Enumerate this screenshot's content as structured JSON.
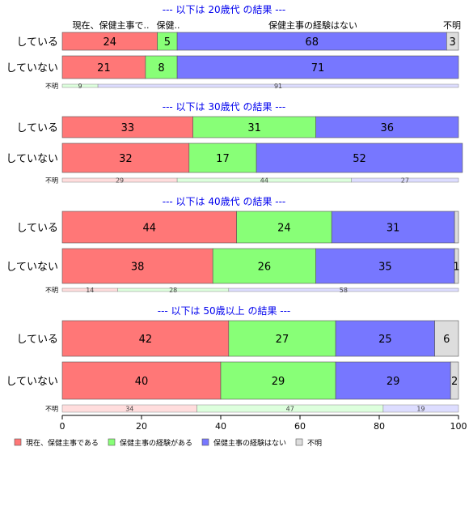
{
  "chart_data": {
    "type": "bar",
    "orientation": "horizontal",
    "stacked": true,
    "xlim": [
      0,
      100
    ],
    "x_ticks": [
      0,
      20,
      40,
      60,
      80,
      100
    ],
    "grid": false,
    "legend_position": "bottom-left",
    "categories_legend": [
      "現在、保健主事である",
      "保健主事の経験がある",
      "保健主事の経験はない",
      "不明"
    ],
    "colors": [
      "#ff7777",
      "#88ff77",
      "#7777ff",
      "#dddddd"
    ],
    "header_labels": [
      "現在、保健主事で..",
      "保健..",
      "保健主事の経験はない",
      "不明"
    ],
    "panels": [
      {
        "title": "--- 以下は 20歳代 の結果 ---",
        "rows": [
          {
            "label": "している",
            "values": [
              24,
              5,
              68,
              3
            ]
          },
          {
            "label": "していない",
            "values": [
              21,
              8,
              71,
              0
            ]
          }
        ],
        "unknown": {
          "label": "不明",
          "values": [
            0,
            9,
            91,
            0
          ],
          "labels": [
            "",
            "9",
            "91",
            ""
          ]
        }
      },
      {
        "title": "--- 以下は 30歳代 の結果 ---",
        "rows": [
          {
            "label": "している",
            "values": [
              33,
              31,
              36,
              0
            ]
          },
          {
            "label": "していない",
            "values": [
              32,
              17,
              52,
              0
            ]
          }
        ],
        "unknown": {
          "label": "不明",
          "values": [
            29,
            44,
            27,
            0
          ],
          "labels": [
            "29",
            "44",
            "27",
            ""
          ]
        }
      },
      {
        "title": "--- 以下は 40歳代 の結果 ---",
        "rows": [
          {
            "label": "している",
            "values": [
              44,
              24,
              31,
              1
            ]
          },
          {
            "label": "していない",
            "values": [
              38,
              26,
              35,
              1
            ]
          }
        ],
        "unknown": {
          "label": "不明",
          "values": [
            14,
            28,
            58,
            0
          ],
          "labels": [
            "14",
            "28",
            "58",
            ""
          ]
        }
      },
      {
        "title": "--- 以下は 50歳以上 の結果 ---",
        "rows": [
          {
            "label": "している",
            "values": [
              42,
              27,
              25,
              6
            ]
          },
          {
            "label": "していない",
            "values": [
              40,
              29,
              29,
              2
            ]
          }
        ],
        "unknown": {
          "label": "不明",
          "values": [
            34,
            47,
            19,
            0
          ],
          "labels": [
            "34",
            "47",
            "19",
            ""
          ]
        }
      }
    ],
    "row_labels_override": [
      [
        [
          "24",
          "5",
          "68",
          "3"
        ],
        [
          "21",
          "8",
          "71",
          ""
        ]
      ],
      [
        [
          "33",
          "31",
          "36",
          ""
        ],
        [
          "32",
          "17",
          "52",
          ""
        ]
      ],
      [
        [
          "44",
          "24",
          "31",
          ""
        ],
        [
          "38",
          "26",
          "35",
          "1"
        ]
      ],
      [
        [
          "42",
          "27",
          "25",
          "6"
        ],
        [
          "40",
          "29",
          "29",
          "2"
        ]
      ]
    ]
  }
}
